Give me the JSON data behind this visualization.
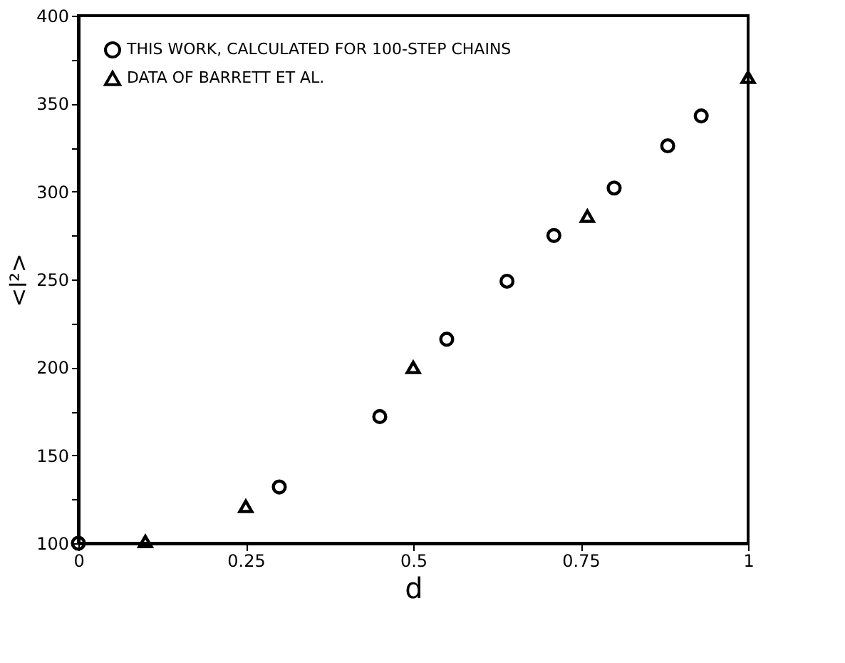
{
  "chart_data": {
    "type": "scatter",
    "xlabel": "d",
    "ylabel": "<l²>",
    "xlim": [
      0,
      1
    ],
    "ylim": [
      100,
      400
    ],
    "xticks": [
      0,
      0.25,
      0.5,
      0.75,
      1
    ],
    "yticks": [
      100,
      {
        "value": 125,
        "label": null
      },
      150,
      {
        "value": 175,
        "label": null
      },
      200,
      {
        "value": 225,
        "label": null
      },
      250,
      {
        "value": 275,
        "label": null
      },
      300,
      {
        "value": 325,
        "label": null
      },
      350,
      {
        "value": 375,
        "label": null
      },
      400
    ],
    "grid": false,
    "legend": "top left",
    "series": [
      {
        "name": "THIS WORK, CALCULATED FOR 100-STEP CHAINS",
        "color": "#000000",
        "marker": "circle",
        "x": [
          0,
          0.3,
          0.45,
          0.55,
          0.64,
          0.71,
          0.8,
          0.88,
          0.93
        ],
        "values": [
          100,
          132,
          172,
          216,
          249,
          275,
          302,
          326,
          343
        ]
      },
      {
        "name": "DATA OF BARRETT ET AL.",
        "color": "#000000",
        "marker": "triangle",
        "x": [
          0.1,
          0.25,
          0.5,
          0.76,
          1
        ],
        "values": [
          101,
          121,
          200,
          286,
          365
        ]
      }
    ]
  }
}
